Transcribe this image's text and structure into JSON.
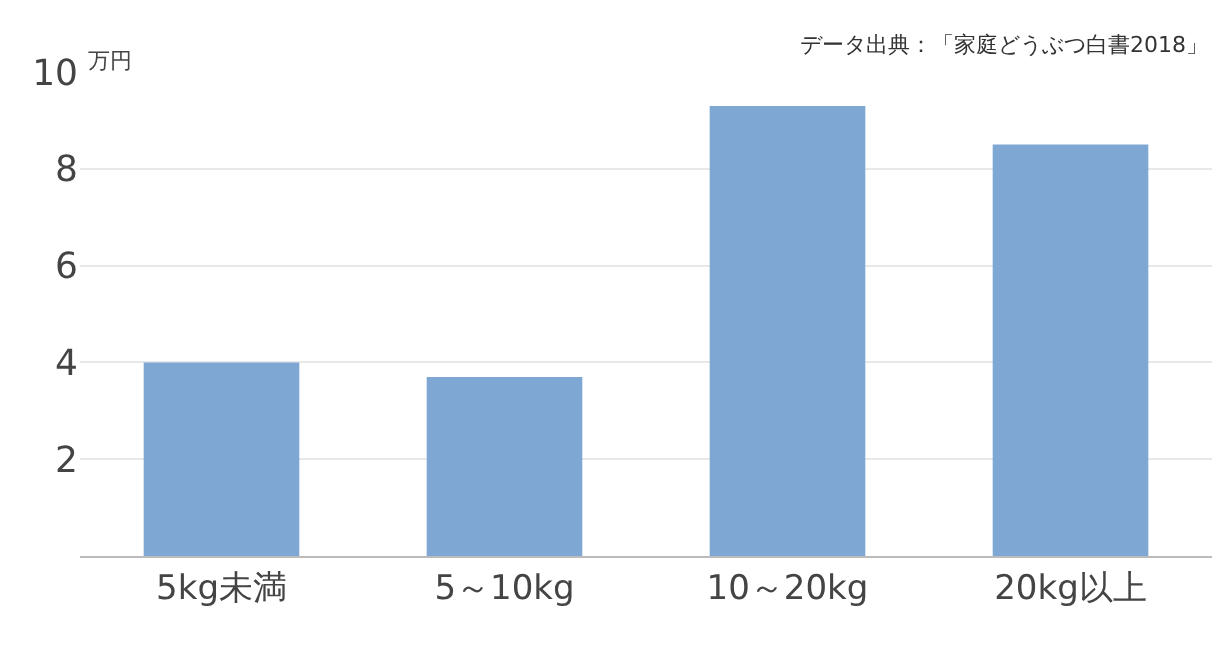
{
  "chart_data": {
    "type": "bar",
    "categories": [
      "5kg未満",
      "5～10kg",
      "10～20kg",
      "20kg以上"
    ],
    "values": [
      4.0,
      3.7,
      9.3,
      8.5
    ],
    "color": "#7fa7d4",
    "ylabel": "万円",
    "ylim": [
      0,
      10
    ],
    "yticks": [
      2,
      4,
      6,
      8,
      10
    ],
    "grid": "y",
    "annotations": [
      "データ出典：「家庭どうぶつ白書2018」"
    ]
  }
}
